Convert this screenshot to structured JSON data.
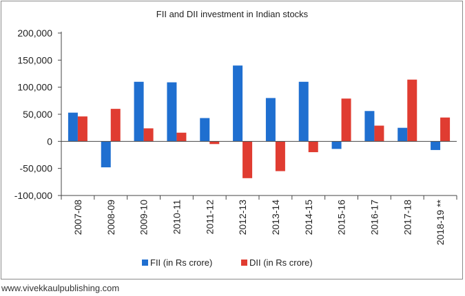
{
  "footer": "www.vivekkaulpublishing.com",
  "colors": {
    "fii": "#1f6fd0",
    "dii": "#e03c31",
    "axis": "#444444",
    "frame": "#8a8a8a"
  },
  "chart_data": {
    "type": "bar",
    "title": "FII and DII investment in Indian stocks",
    "xlabel": "",
    "ylabel": "",
    "categories": [
      "2007-08",
      "2008-09",
      "2009-10",
      "2010-11",
      "2011-12",
      "2012-13",
      "2013-14",
      "2014-15",
      "2015-16",
      "2016-17",
      "2017-18",
      "2018-19 **"
    ],
    "series": [
      {
        "name": "FII (in Rs crore)",
        "values": [
          53000,
          -48000,
          110000,
          109000,
          43000,
          140000,
          80000,
          110000,
          -14000,
          56000,
          25000,
          -16000
        ]
      },
      {
        "name": "DII (in Rs crore)",
        "values": [
          46000,
          60000,
          24000,
          16000,
          -5000,
          -68000,
          -55000,
          -20000,
          79000,
          29000,
          114000,
          44000
        ]
      }
    ],
    "ylim": [
      -100000,
      200000
    ],
    "yticks": [
      -100000,
      -50000,
      0,
      50000,
      100000,
      150000,
      200000
    ],
    "ytick_labels": [
      "-100,000",
      "-50,000",
      "0",
      "50,000",
      "100,000",
      "150,000",
      "200,000"
    ],
    "grid": false,
    "legend_position": "bottom"
  }
}
